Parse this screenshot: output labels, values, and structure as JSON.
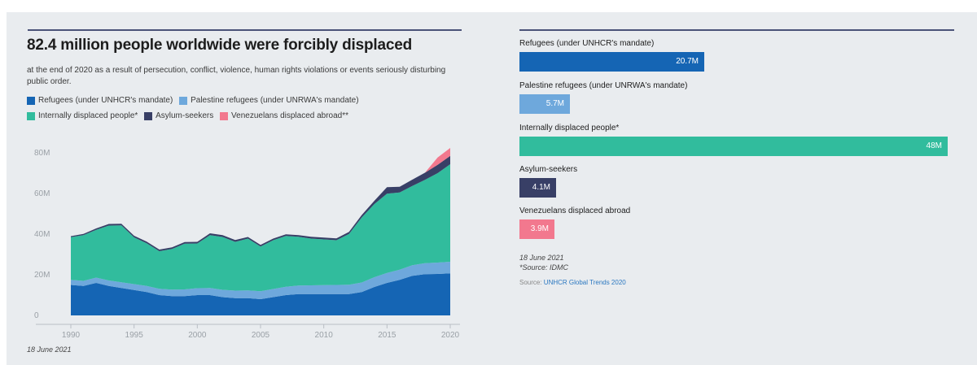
{
  "header": {
    "title": "82.4 million people worldwide were forcibly displaced",
    "subtitle": "at the end of 2020 as a result of persecution, conflict, violence, human rights violations or events seriously disturbing public order."
  },
  "colors": {
    "refugees": "#1565b4",
    "palestine": "#6ea8dc",
    "idp": "#31bc9d",
    "asylum": "#383f66",
    "venezuelans": "#f2788e"
  },
  "legend": [
    {
      "key": "refugees",
      "label": "Refugees (under UNHCR's mandate)"
    },
    {
      "key": "palestine",
      "label": "Palestine refugees (under UNRWA's mandate)"
    },
    {
      "key": "idp",
      "label": "Internally displaced people*"
    },
    {
      "key": "asylum",
      "label": "Asylum-seekers"
    },
    {
      "key": "venezuelans",
      "label": "Venezuelans displaced abroad**"
    }
  ],
  "bars": [
    {
      "key": "refugees",
      "label": "Refugees (under UNHCR's mandate)",
      "value": 20.7,
      "value_label": "20.7M"
    },
    {
      "key": "palestine",
      "label": "Palestine refugees (under UNRWA's mandate)",
      "value": 5.7,
      "value_label": "5.7M"
    },
    {
      "key": "idp",
      "label": "Internally displaced people*",
      "value": 48,
      "value_label": "48M"
    },
    {
      "key": "asylum",
      "label": "Asylum-seekers",
      "value": 4.1,
      "value_label": "4.1M"
    },
    {
      "key": "venezuelans",
      "label": "Venezuelans displaced abroad",
      "value": 3.9,
      "value_label": "3.9M"
    }
  ],
  "notes": {
    "date": "18 June 2021",
    "footnote": "*Source: IDMC",
    "source_prefix": "Source: ",
    "source_link": "UNHCR Global Trends 2020",
    "bottom_date": "18 June 2021"
  },
  "chart_data": [
    {
      "type": "area",
      "stacked": true,
      "title": "82.4 million people worldwide were forcibly displaced",
      "x": [
        1990,
        1991,
        1992,
        1993,
        1994,
        1995,
        1996,
        1997,
        1998,
        1999,
        2000,
        2001,
        2002,
        2003,
        2004,
        2005,
        2006,
        2007,
        2008,
        2009,
        2010,
        2011,
        2012,
        2013,
        2014,
        2015,
        2016,
        2017,
        2018,
        2019,
        2020
      ],
      "xticks": [
        1990,
        1995,
        2000,
        2005,
        2010,
        2015,
        2020
      ],
      "xlim": [
        1990,
        2020
      ],
      "ylim": [
        0,
        80
      ],
      "yticks": [
        0,
        20,
        40,
        60,
        80
      ],
      "ytick_labels": [
        "0",
        "20M",
        "40M",
        "60M",
        "80M"
      ],
      "grid": false,
      "legend": "top",
      "series": [
        {
          "name": "Refugees (under UNHCR's mandate)",
          "key": "refugees",
          "values": [
            15,
            14.5,
            16,
            14.5,
            13.5,
            12.5,
            11.5,
            10,
            9.5,
            9.5,
            10,
            10,
            9,
            8.5,
            8.5,
            8,
            9,
            10,
            10.5,
            10.5,
            10.5,
            10.5,
            10.5,
            11.5,
            14,
            16,
            17.5,
            19.5,
            20.3,
            20.4,
            20.7
          ]
        },
        {
          "name": "Palestine refugees (under UNRWA's mandate)",
          "key": "palestine",
          "values": [
            2.5,
            2.5,
            2.6,
            2.7,
            2.8,
            2.9,
            3,
            3.1,
            3.2,
            3.3,
            3.4,
            3.5,
            3.6,
            3.7,
            3.8,
            3.9,
            4.0,
            4.1,
            4.2,
            4.3,
            4.4,
            4.5,
            4.6,
            4.7,
            4.8,
            4.9,
            5.0,
            5.2,
            5.4,
            5.6,
            5.7
          ]
        },
        {
          "name": "Internally displaced people*",
          "key": "idp",
          "values": [
            21,
            22.5,
            23.5,
            27,
            28,
            23,
            21,
            18.5,
            20,
            22.5,
            22,
            26,
            26,
            24,
            25.5,
            22,
            24,
            25,
            24,
            23,
            22.5,
            22,
            25,
            32,
            36,
            39,
            38,
            39,
            41,
            44,
            48
          ]
        },
        {
          "name": "Asylum-seekers",
          "key": "asylum",
          "values": [
            0.5,
            0.6,
            0.7,
            0.8,
            0.8,
            0.8,
            0.8,
            0.8,
            0.8,
            0.8,
            0.8,
            0.9,
            0.9,
            0.9,
            0.8,
            0.8,
            0.8,
            0.8,
            0.8,
            0.9,
            0.9,
            0.9,
            1.0,
            1.2,
            1.6,
            3.2,
            2.8,
            3.1,
            3.5,
            4.1,
            4.1
          ]
        },
        {
          "name": "Venezuelans displaced abroad**",
          "key": "venezuelans",
          "values": [
            0,
            0,
            0,
            0,
            0,
            0,
            0,
            0,
            0,
            0,
            0,
            0,
            0,
            0,
            0,
            0,
            0,
            0,
            0,
            0,
            0,
            0,
            0,
            0,
            0,
            0,
            0,
            0,
            0,
            3.6,
            3.9
          ]
        }
      ]
    },
    {
      "type": "bar",
      "orientation": "horizontal",
      "categories": [
        "Refugees (under UNHCR's mandate)",
        "Palestine refugees (under UNRWA's mandate)",
        "Internally displaced people*",
        "Asylum-seekers",
        "Venezuelans displaced abroad"
      ],
      "values": [
        20.7,
        5.7,
        48,
        4.1,
        3.9
      ],
      "value_labels": [
        "20.7M",
        "5.7M",
        "48M",
        "4.1M",
        "3.9M"
      ],
      "xlim": [
        0,
        48
      ]
    }
  ]
}
